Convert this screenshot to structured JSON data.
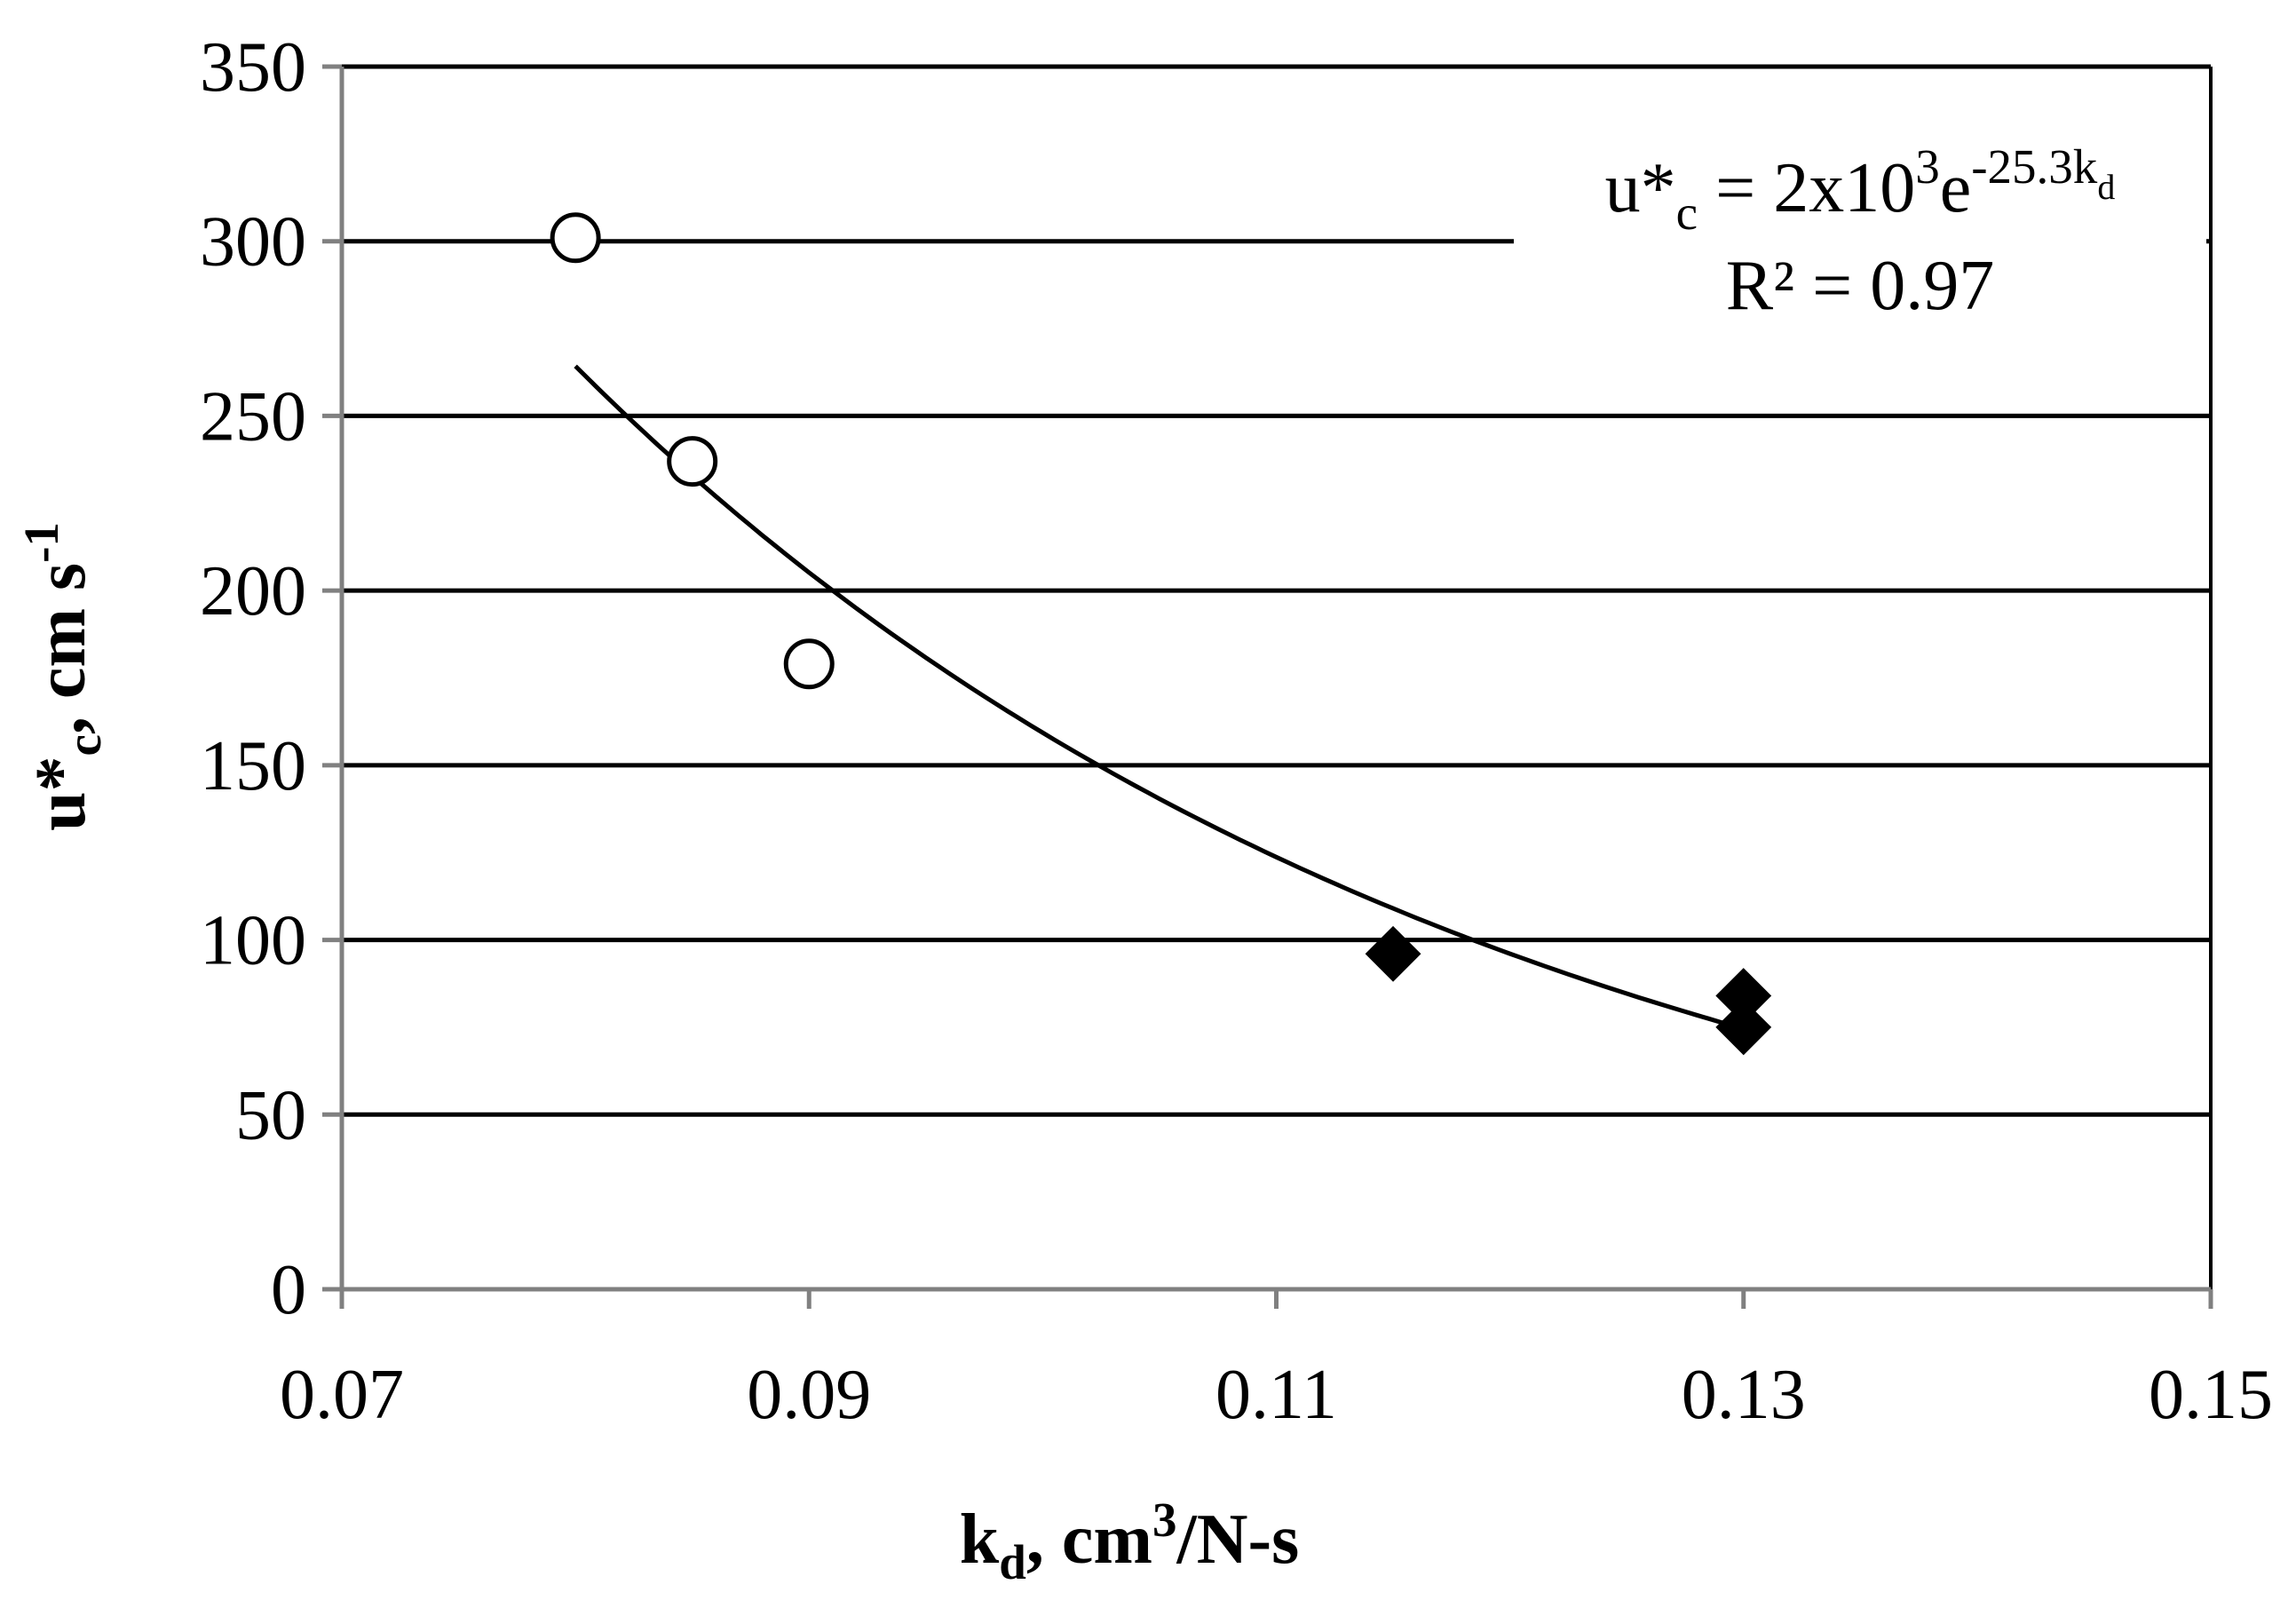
{
  "chart_data": {
    "type": "scatter",
    "xlabel": {
      "base": "k",
      "sub": "d",
      "mid": ", cm",
      "sup": "3",
      "tail": "/N-s"
    },
    "ylabel": {
      "base": "u*",
      "sub": "c",
      "mid": ", cm s",
      "sup": "-1"
    },
    "xlim": [
      0.07,
      0.15
    ],
    "ylim": [
      0,
      350
    ],
    "xticks": [
      0.07,
      0.09,
      0.11,
      0.13,
      0.15
    ],
    "xtick_labels": [
      "0.07",
      "0.09",
      "0.11",
      "0.13",
      "0.15"
    ],
    "yticks": [
      0,
      50,
      100,
      150,
      200,
      250,
      300,
      350
    ],
    "ytick_labels": [
      "0",
      "50",
      "100",
      "150",
      "200",
      "250",
      "300",
      "350"
    ],
    "grid": {
      "y": true,
      "x": false
    },
    "series": [
      {
        "marker": "open-circle",
        "x": [
          0.08,
          0.085,
          0.09
        ],
        "y": [
          301,
          237,
          179
        ]
      },
      {
        "marker": "filled-diamond",
        "x": [
          0.115,
          0.13,
          0.13
        ],
        "y": [
          96,
          84,
          75
        ]
      }
    ],
    "trendline": {
      "type": "exponential",
      "coefficient": 2000,
      "rate": -25.3,
      "x_range": [
        0.08,
        0.13
      ],
      "equation": {
        "lhs": "u*",
        "lhs_sub": "c",
        "rhs": " = 2x10",
        "exp3": "3",
        "e": "e",
        "exp": "-25.3k",
        "exp_sub": "d"
      },
      "r2_text": "R² = 0.97"
    },
    "colors": {
      "axis": "#808080",
      "grid": "#000000",
      "marker": "#000000"
    }
  }
}
